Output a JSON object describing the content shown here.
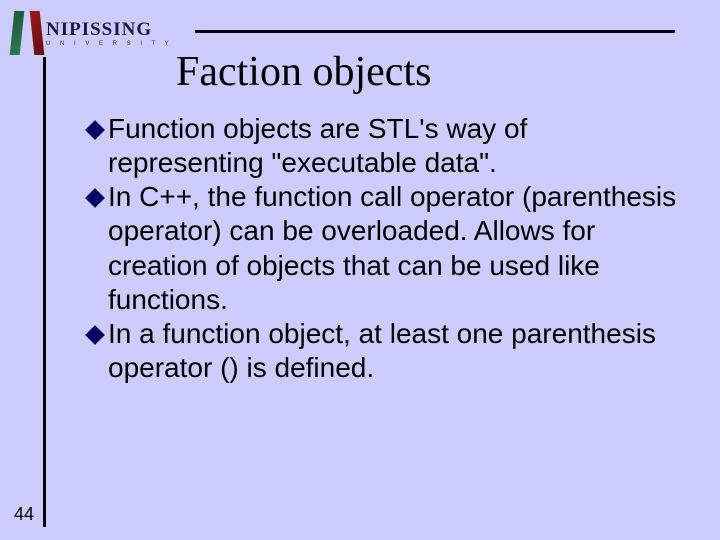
{
  "logo": {
    "main": "NIPISSING",
    "sub": "U N I V E R S I T Y"
  },
  "title": "Faction objects",
  "bullets": [
    "Function objects are STL's way of representing \"executable data\".",
    "In C++, the function call operator (parenthesis operator) can be overloaded. Allows for creation of objects that can be used like functions.",
    "In a function object, at least one parenthesis operator () is defined."
  ],
  "page_number": "44",
  "colors": {
    "background": "#ccccfe",
    "bullet_diamond": "#000066",
    "rule": "#000000"
  }
}
